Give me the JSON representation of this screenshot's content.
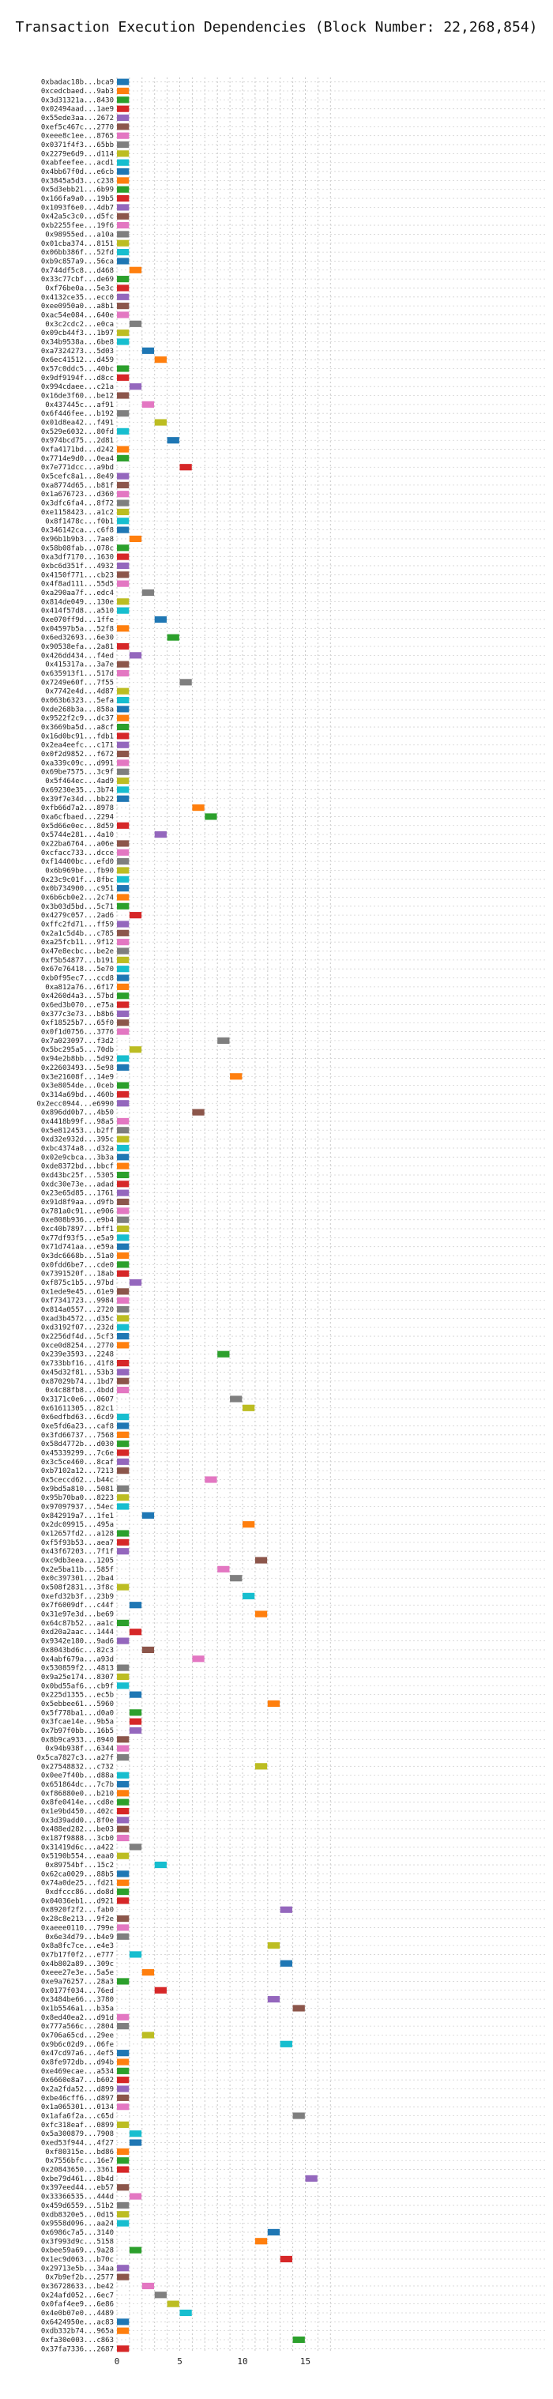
{
  "chart_data": {
    "type": "gantt",
    "title": "Transaction Execution Dependencies (Block Number: 22,268,854)",
    "xlim": [
      0,
      17
    ],
    "xticks": [
      0,
      5,
      10,
      15
    ],
    "grid": true,
    "bar_duration": 1,
    "colors": [
      "#1f77b4",
      "#ff7f0e",
      "#2ca02c",
      "#d62728",
      "#9467bd",
      "#8c564b",
      "#e377c2",
      "#7f7f7f",
      "#bcbd22",
      "#17becf"
    ],
    "rows": [
      {
        "label": "0xbadac18b...bca9",
        "start": 0
      },
      {
        "label": "0xcedcbaed...9ab3",
        "start": 0
      },
      {
        "label": "0x3d31321a...8430",
        "start": 0
      },
      {
        "label": "0x02494aad...1ae9",
        "start": 0
      },
      {
        "label": "0x55ede3aa...2672",
        "start": 0
      },
      {
        "label": "0xef5c467c...2770",
        "start": 0
      },
      {
        "label": "0xeee8c1ee...8765",
        "start": 0
      },
      {
        "label": "0x0371f4f3...65bb",
        "start": 0
      },
      {
        "label": "0x2279e6d9...d114",
        "start": 0
      },
      {
        "label": "0xabfeefee...acd1",
        "start": 0
      },
      {
        "label": "0x4bb67f0d...e6cb",
        "start": 0
      },
      {
        "label": "0x3845a5d3...c238",
        "start": 0
      },
      {
        "label": "0x5d3ebb21...6b99",
        "start": 0
      },
      {
        "label": "0x166fa9a0...19b5",
        "start": 0
      },
      {
        "label": "0x1093f6e0...4db7",
        "start": 0
      },
      {
        "label": "0x42a5c3c0...d5fc",
        "start": 0
      },
      {
        "label": "0xb2255fee...19f6",
        "start": 0
      },
      {
        "label": "0x98955ed...a10a",
        "start": 0
      },
      {
        "label": "0x01cba374...8151",
        "start": 0
      },
      {
        "label": "0x06bb386f...52fd",
        "start": 0
      },
      {
        "label": "0xb9c857a9...56ca",
        "start": 0
      },
      {
        "label": "0x744df5c8...d468",
        "start": 1
      },
      {
        "label": "0x33c77cbf...de69",
        "start": 0
      },
      {
        "label": "0xf76be0a...5e3c",
        "start": 0
      },
      {
        "label": "0x4132ce35...ecc0",
        "start": 0
      },
      {
        "label": "0xee0950a0...a8b1",
        "start": 0
      },
      {
        "label": "0xac54e084...640e",
        "start": 0
      },
      {
        "label": "0x3c2cdc2...e0ca",
        "start": 1
      },
      {
        "label": "0x09cb44f3...1b97",
        "start": 0
      },
      {
        "label": "0x34b9538a...6be8",
        "start": 0
      },
      {
        "label": "0xa7324273...5d03",
        "start": 2
      },
      {
        "label": "0x6ec41512...d459",
        "start": 3
      },
      {
        "label": "0x57c0ddc5...40bc",
        "start": 0
      },
      {
        "label": "0x9df9194f...d8cc",
        "start": 0
      },
      {
        "label": "0x994cdaee...c21a",
        "start": 1
      },
      {
        "label": "0x16de3f60...be12",
        "start": 0
      },
      {
        "label": "0x437445c...af91",
        "start": 2
      },
      {
        "label": "0x6f446fee...b192",
        "start": 0
      },
      {
        "label": "0x01d8ea42...f491",
        "start": 3
      },
      {
        "label": "0x529e6032...80fd",
        "start": 0
      },
      {
        "label": "0x974bcd75...2d81",
        "start": 4
      },
      {
        "label": "0xfa4171bd...d242",
        "start": 0
      },
      {
        "label": "0x7714e9d0...0ea4",
        "start": 0
      },
      {
        "label": "0x7e771dcc...a9bd",
        "start": 5
      },
      {
        "label": "0x5cefc8a1...8e49",
        "start": 0
      },
      {
        "label": "0xa8774d65...b81f",
        "start": 0
      },
      {
        "label": "0x1a676723...d360",
        "start": 0
      },
      {
        "label": "0x3dfc6fa4...8f72",
        "start": 0
      },
      {
        "label": "0xe1158423...a1c2",
        "start": 0
      },
      {
        "label": "0x8f1478c...f0b1",
        "start": 0
      },
      {
        "label": "0x346142ca...c6f8",
        "start": 0
      },
      {
        "label": "0x96b1b9b3...7ae8",
        "start": 1
      },
      {
        "label": "0x58b08fab...078c",
        "start": 0
      },
      {
        "label": "0xa3df7170...1630",
        "start": 0
      },
      {
        "label": "0xbc6d351f...4932",
        "start": 0
      },
      {
        "label": "0x4150f771...cb23",
        "start": 0
      },
      {
        "label": "0x4f8ad111...55d5",
        "start": 0
      },
      {
        "label": "0xa290aa7f...edc4",
        "start": 2
      },
      {
        "label": "0x814de049...130e",
        "start": 0
      },
      {
        "label": "0x414f57d8...a510",
        "start": 0
      },
      {
        "label": "0xe070ff9d...1ffe",
        "start": 3
      },
      {
        "label": "0x04597b5a...52f8",
        "start": 0
      },
      {
        "label": "0x6ed32693...6e30",
        "start": 4
      },
      {
        "label": "0x90538efa...2a81",
        "start": 0
      },
      {
        "label": "0x426dd434...f4ed",
        "start": 1
      },
      {
        "label": "0x415317a...3a7e",
        "start": 0
      },
      {
        "label": "0x635913f1...517d",
        "start": 0
      },
      {
        "label": "0x7249e60f...7f55",
        "start": 5
      },
      {
        "label": "0x7742e4d...4d87",
        "start": 0
      },
      {
        "label": "0x063b6323...5efa",
        "start": 0
      },
      {
        "label": "0xde268b3a...858a",
        "start": 0
      },
      {
        "label": "0x9522f2c9...dc37",
        "start": 0
      },
      {
        "label": "0x3669ba5d...a8cf",
        "start": 0
      },
      {
        "label": "0x16d0bc91...fdb1",
        "start": 0
      },
      {
        "label": "0x2ea4eefc...c171",
        "start": 0
      },
      {
        "label": "0x0f2d9852...f672",
        "start": 0
      },
      {
        "label": "0xa339c09c...d991",
        "start": 0
      },
      {
        "label": "0x69be7575...3c9f",
        "start": 0
      },
      {
        "label": "0x5f464ec...4ad9",
        "start": 0
      },
      {
        "label": "0x69230e35...3b74",
        "start": 0
      },
      {
        "label": "0x39f7e34d...bb22",
        "start": 0
      },
      {
        "label": "0xfb66d7a2...8978",
        "start": 6
      },
      {
        "label": "0xa6cfbaed...2294",
        "start": 7
      },
      {
        "label": "0x5d66e0ec...8d59",
        "start": 0
      },
      {
        "label": "0x5744e281...4a10",
        "start": 3
      },
      {
        "label": "0x22ba6764...a06e",
        "start": 0
      },
      {
        "label": "0xcfacc733...dcce",
        "start": 0
      },
      {
        "label": "0xf14400bc...efd0",
        "start": 0
      },
      {
        "label": "0x6b969be...fb90",
        "start": 0
      },
      {
        "label": "0x23c9c01f...8fbc",
        "start": 0
      },
      {
        "label": "0x0b734900...c951",
        "start": 0
      },
      {
        "label": "0x6b6cb0e2...2c74",
        "start": 0
      },
      {
        "label": "0x3b03d5bd...5c71",
        "start": 0
      },
      {
        "label": "0x4279c057...2ad6",
        "start": 1
      },
      {
        "label": "0xffc2fd71...ff59",
        "start": 0
      },
      {
        "label": "0x2a1c5d4b...c785",
        "start": 0
      },
      {
        "label": "0xa25fcb11...9f12",
        "start": 0
      },
      {
        "label": "0x47e8ecbc...be2e",
        "start": 0
      },
      {
        "label": "0xf5b54877...b191",
        "start": 0
      },
      {
        "label": "0x67e76418...5e70",
        "start": 0
      },
      {
        "label": "0xb0f95ec7...ccd8",
        "start": 0
      },
      {
        "label": "0xa812a76...6f17",
        "start": 0
      },
      {
        "label": "0x4260d4a3...57bd",
        "start": 0
      },
      {
        "label": "0x6ed3b070...e75a",
        "start": 0
      },
      {
        "label": "0x377c3e73...b8b6",
        "start": 0
      },
      {
        "label": "0xf18525b7...65f0",
        "start": 0
      },
      {
        "label": "0x0f1d0756...3776",
        "start": 0
      },
      {
        "label": "0x7a023097...f3d2",
        "start": 8
      },
      {
        "label": "0x5bc295a5...70db",
        "start": 1
      },
      {
        "label": "0x94e2b8bb...5d92",
        "start": 0
      },
      {
        "label": "0x22603493...5e98",
        "start": 0
      },
      {
        "label": "0x3e21608f...14e9",
        "start": 9
      },
      {
        "label": "0x3e8054de...0ceb",
        "start": 0
      },
      {
        "label": "0x314a69bd...460b",
        "start": 0
      },
      {
        "label": "0x2ecc0944...e6990",
        "start": 0
      },
      {
        "label": "0x896dd0b7...4b50",
        "start": 6
      },
      {
        "label": "0x4418b99f...98a5",
        "start": 0
      },
      {
        "label": "0x5e812453...b2ff",
        "start": 0
      },
      {
        "label": "0xd32e932d...395c",
        "start": 0
      },
      {
        "label": "0xbc4374a8...d32a",
        "start": 0
      },
      {
        "label": "0x02e9cbca...3b3a",
        "start": 0
      },
      {
        "label": "0xde8372bd...bbcf",
        "start": 0
      },
      {
        "label": "0xd43bc25f...5305",
        "start": 0
      },
      {
        "label": "0xdc30e73e...adad",
        "start": 0
      },
      {
        "label": "0x23e65d85...1761",
        "start": 0
      },
      {
        "label": "0x91d8f9aa...d9fb",
        "start": 0
      },
      {
        "label": "0x781a0c91...e906",
        "start": 0
      },
      {
        "label": "0xe808b936...e9b4",
        "start": 0
      },
      {
        "label": "0xc40b7897...bff1",
        "start": 0
      },
      {
        "label": "0x77df93f5...e5a9",
        "start": 0
      },
      {
        "label": "0x71d741aa...e59a",
        "start": 0
      },
      {
        "label": "0x3dc6668b...51a0",
        "start": 0
      },
      {
        "label": "0x0fdd6be7...cde0",
        "start": 0
      },
      {
        "label": "0x7391520f...18ab",
        "start": 0
      },
      {
        "label": "0xf875c1b5...97bd",
        "start": 1
      },
      {
        "label": "0x1ede9e45...61e9",
        "start": 0
      },
      {
        "label": "0xf7341723...9984",
        "start": 0
      },
      {
        "label": "0x814a0557...2720",
        "start": 0
      },
      {
        "label": "0xad3b4572...d35c",
        "start": 0
      },
      {
        "label": "0xd3192f07...232d",
        "start": 0
      },
      {
        "label": "0x2256df4d...5cf3",
        "start": 0
      },
      {
        "label": "0xce0d8254...2770",
        "start": 0
      },
      {
        "label": "0x239e3593...2248",
        "start": 8
      },
      {
        "label": "0x733bbf16...41f8",
        "start": 0
      },
      {
        "label": "0x45d32f81...53b3",
        "start": 0
      },
      {
        "label": "0x87029b74...1bd7",
        "start": 0
      },
      {
        "label": "0x4c88fb8...4bdd",
        "start": 0
      },
      {
        "label": "0x3171c0e6...0607",
        "start": 9
      },
      {
        "label": "0x61611305...82c1",
        "start": 10
      },
      {
        "label": "0x6edfbd63...6cd9",
        "start": 0
      },
      {
        "label": "0xe5fd6a23...caf8",
        "start": 0
      },
      {
        "label": "0x3fd66737...7568",
        "start": 0
      },
      {
        "label": "0x58d4772b...d030",
        "start": 0
      },
      {
        "label": "0x45339299...7c6e",
        "start": 0
      },
      {
        "label": "0x3c5ce460...8caf",
        "start": 0
      },
      {
        "label": "0xb7102a12...7213",
        "start": 0
      },
      {
        "label": "0x5ceccd62...b44c",
        "start": 7
      },
      {
        "label": "0x9bd5a810...5081",
        "start": 0
      },
      {
        "label": "0x95b70ba0...8223",
        "start": 0
      },
      {
        "label": "0x97097937...54ec",
        "start": 0
      },
      {
        "label": "0x842919a7...1fe1",
        "start": 2
      },
      {
        "label": "0x2dc09915...495a",
        "start": 10
      },
      {
        "label": "0x12657fd2...a128",
        "start": 0
      },
      {
        "label": "0xf5f93b53...aea7",
        "start": 0
      },
      {
        "label": "0x43f67203...7f1f",
        "start": 0
      },
      {
        "label": "0xc9db3eea...1205",
        "start": 11
      },
      {
        "label": "0x2e5ba11b...585f",
        "start": 8
      },
      {
        "label": "0x0c397301...2ba4",
        "start": 9
      },
      {
        "label": "0x508f2831...3f8c",
        "start": 0
      },
      {
        "label": "0xefd32b3f...23b9",
        "start": 10
      },
      {
        "label": "0x7f6009df...c44f",
        "start": 1
      },
      {
        "label": "0x31e97e3d...be69",
        "start": 11
      },
      {
        "label": "0x64c87b52...aa1c",
        "start": 0
      },
      {
        "label": "0xd20a2aac...1444",
        "start": 1
      },
      {
        "label": "0x9342e180...9ad6",
        "start": 0
      },
      {
        "label": "0x8043bd6c...82c3",
        "start": 2
      },
      {
        "label": "0x4abf679a...a93d",
        "start": 6
      },
      {
        "label": "0x530859f2...4813",
        "start": 0
      },
      {
        "label": "0x9a25e174...8307",
        "start": 0
      },
      {
        "label": "0x0bd55af6...cb9f",
        "start": 0
      },
      {
        "label": "0x225d1355...ec5b",
        "start": 1
      },
      {
        "label": "0x5ebbee61...5960",
        "start": 12
      },
      {
        "label": "0x5f778ba1...d0a0",
        "start": 1
      },
      {
        "label": "0x3fcae14e...9b5a",
        "start": 1
      },
      {
        "label": "0x7b97f0bb...16b5",
        "start": 1
      },
      {
        "label": "0x8b9ca933...8940",
        "start": 0
      },
      {
        "label": "0x94b938f...6344",
        "start": 0
      },
      {
        "label": "0x5ca7827c3...a27f",
        "start": 0
      },
      {
        "label": "0x27548832...c732",
        "start": 11
      },
      {
        "label": "0x0ee7f40b...d88a",
        "start": 0
      },
      {
        "label": "0x651864dc...7c7b",
        "start": 0
      },
      {
        "label": "0xf86880e0...b210",
        "start": 0
      },
      {
        "label": "0x8fe0414e...cd8e",
        "start": 0
      },
      {
        "label": "0x1e9bd450...402c",
        "start": 0
      },
      {
        "label": "0x3d39add0...8f0e",
        "start": 0
      },
      {
        "label": "0x488ed282...be03",
        "start": 0
      },
      {
        "label": "0x187f9888...3cb0",
        "start": 0
      },
      {
        "label": "0x31419d6c...a422",
        "start": 1
      },
      {
        "label": "0x5190b554...eaa0",
        "start": 0
      },
      {
        "label": "0x89754bf...15c2",
        "start": 3
      },
      {
        "label": "0x62ca0029...88b5",
        "start": 0
      },
      {
        "label": "0x74a0de25...fd21",
        "start": 0
      },
      {
        "label": "0xdfccc86...do8d",
        "start": 0
      },
      {
        "label": "0x04036eb1...d921",
        "start": 0
      },
      {
        "label": "0x8920f2f2...fab0",
        "start": 13
      },
      {
        "label": "0x28c8e213...9f2e",
        "start": 0
      },
      {
        "label": "0xaeee0110...799e",
        "start": 0
      },
      {
        "label": "0x6e34d79...b4e9",
        "start": 0
      },
      {
        "label": "0x8a8fc7ce...e4e3",
        "start": 12
      },
      {
        "label": "0x7b17f0f2...e777",
        "start": 1
      },
      {
        "label": "0x4b802a89...309c",
        "start": 13
      },
      {
        "label": "0xeee27e3e...5a5e",
        "start": 2
      },
      {
        "label": "0xe9a76257...28a3",
        "start": 0
      },
      {
        "label": "0x0177f034...76ed",
        "start": 3
      },
      {
        "label": "0x3484be66...3780",
        "start": 12
      },
      {
        "label": "0x1b5546a1...b35a",
        "start": 14
      },
      {
        "label": "0x8ed40ea2...d91d",
        "start": 0
      },
      {
        "label": "0x777a566c...2804",
        "start": 0
      },
      {
        "label": "0x706a65cd...29ee",
        "start": 2
      },
      {
        "label": "0x9b6c02d9...06fe",
        "start": 13
      },
      {
        "label": "0x47cd97a6...4ef5",
        "start": 0
      },
      {
        "label": "0x8fe972db...d94b",
        "start": 0
      },
      {
        "label": "0xe469ecae...a534",
        "start": 0
      },
      {
        "label": "0x6660e8a7...b602",
        "start": 0
      },
      {
        "label": "0x2a2fda52...d899",
        "start": 0
      },
      {
        "label": "0xbe46cff6...d897",
        "start": 0
      },
      {
        "label": "0x1a065301...0134",
        "start": 0
      },
      {
        "label": "0x1afa6f2a...c65d",
        "start": 14
      },
      {
        "label": "0xfc318eaf...0899",
        "start": 0
      },
      {
        "label": "0x5a300879...7908",
        "start": 1
      },
      {
        "label": "0xed53f944...4f27",
        "start": 1
      },
      {
        "label": "0xf80315e...bd86",
        "start": 0
      },
      {
        "label": "0x7556bfc...16e7",
        "start": 0
      },
      {
        "label": "0x20843650...3361",
        "start": 0
      },
      {
        "label": "0xbe79d461...8b4d",
        "start": 15
      },
      {
        "label": "0x397eed44...eb57",
        "start": 0
      },
      {
        "label": "0x33366535...444d",
        "start": 1
      },
      {
        "label": "0x459d6559...51b2",
        "start": 0
      },
      {
        "label": "0xdb8320e5...0d15",
        "start": 0
      },
      {
        "label": "0x9558d096...aa24",
        "start": 0
      },
      {
        "label": "0x6986c7a5...3140",
        "start": 12
      },
      {
        "label": "0x3f993d9c...5158",
        "start": 11
      },
      {
        "label": "0xbee59a69...9a28",
        "start": 1
      },
      {
        "label": "0x1ec9d063...b70c",
        "start": 13
      },
      {
        "label": "0x29713e5b...34aa",
        "start": 0
      },
      {
        "label": "0x7b9ef2b...2577",
        "start": 0
      },
      {
        "label": "0x36728633...be42",
        "start": 2
      },
      {
        "label": "0x24afd052...6ec7",
        "start": 3
      },
      {
        "label": "0x0faf4ee9...6e86",
        "start": 4
      },
      {
        "label": "0x4e0b07e0...4489",
        "start": 5
      },
      {
        "label": "0x6424950e...ac83",
        "start": 0
      },
      {
        "label": "0xdb332b74...965a",
        "start": 0
      },
      {
        "label": "0xfa30e003...c863",
        "start": 14
      },
      {
        "label": "0x37fa7336...2687",
        "start": 0
      }
    ]
  }
}
